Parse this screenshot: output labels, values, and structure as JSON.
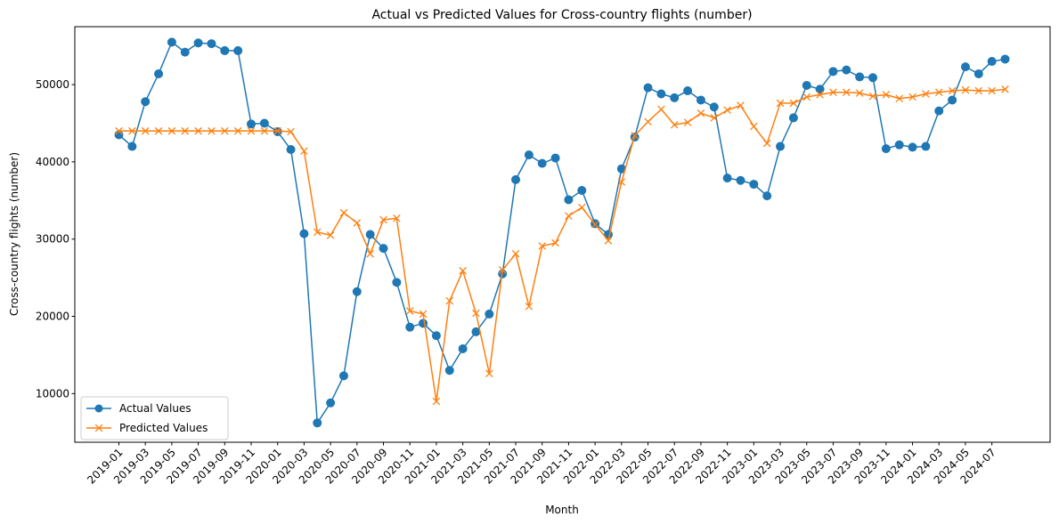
{
  "chart_data": {
    "type": "line",
    "title": "Actual vs Predicted Values for Cross-country flights (number)",
    "xlabel": "Month",
    "ylabel": "Cross-country flights (number)",
    "ylim": [
      3700,
      57500
    ],
    "yticks": [
      10000,
      20000,
      30000,
      40000,
      50000
    ],
    "x": [
      "2019-01",
      "2019-02",
      "2019-03",
      "2019-04",
      "2019-05",
      "2019-06",
      "2019-07",
      "2019-08",
      "2019-09",
      "2019-10",
      "2019-11",
      "2019-12",
      "2020-01",
      "2020-02",
      "2020-03",
      "2020-04",
      "2020-05",
      "2020-06",
      "2020-07",
      "2020-08",
      "2020-09",
      "2020-10",
      "2020-11",
      "2020-12",
      "2021-01",
      "2021-02",
      "2021-03",
      "2021-04",
      "2021-05",
      "2021-06",
      "2021-07",
      "2021-08",
      "2021-09",
      "2021-10",
      "2021-11",
      "2021-12",
      "2022-01",
      "2022-02",
      "2022-03",
      "2022-04",
      "2022-05",
      "2022-06",
      "2022-07",
      "2022-08",
      "2022-09",
      "2022-10",
      "2022-11",
      "2022-12",
      "2023-01",
      "2023-02",
      "2023-03",
      "2023-04",
      "2023-05",
      "2023-06",
      "2023-07",
      "2023-08",
      "2023-09",
      "2023-10",
      "2023-11",
      "2023-12",
      "2024-01",
      "2024-02",
      "2024-03",
      "2024-04",
      "2024-05",
      "2024-06",
      "2024-07",
      "2024-08"
    ],
    "xtick_labels": [
      "2019-01",
      "2019-03",
      "2019-05",
      "2019-07",
      "2019-09",
      "2019-11",
      "2020-01",
      "2020-03",
      "2020-05",
      "2020-07",
      "2020-09",
      "2020-11",
      "2021-01",
      "2021-03",
      "2021-05",
      "2021-07",
      "2021-09",
      "2021-11",
      "2022-01",
      "2022-03",
      "2022-05",
      "2022-07",
      "2022-09",
      "2022-11",
      "2023-01",
      "2023-03",
      "2023-05",
      "2023-07",
      "2023-09",
      "2023-11",
      "2024-01",
      "2024-03",
      "2024-05",
      "2024-07"
    ],
    "series": [
      {
        "name": "Actual Values",
        "color": "#1f77b4",
        "marker": "circle",
        "values": [
          43500,
          42000,
          47800,
          51400,
          55500,
          54200,
          55400,
          55300,
          54400,
          54400,
          44900,
          45000,
          43900,
          41600,
          30700,
          6200,
          8800,
          12300,
          23200,
          30600,
          28800,
          24400,
          18600,
          19100,
          17500,
          13000,
          15800,
          18000,
          20300,
          25500,
          37700,
          40900,
          39800,
          40500,
          35100,
          36300,
          32000,
          30600,
          39100,
          43200,
          49600,
          48800,
          48300,
          49200,
          48000,
          47100,
          37900,
          37600,
          37100,
          35600,
          42000,
          45700,
          49900,
          49400,
          51700,
          51900,
          51000,
          50900,
          41700,
          42200,
          41900,
          42000,
          46600,
          48000,
          52300,
          51400,
          53000,
          53300
        ]
      },
      {
        "name": "Predicted Values",
        "color": "#ff7f0e",
        "marker": "x",
        "values": [
          44000,
          44000,
          44000,
          44000,
          44000,
          44000,
          44000,
          44000,
          44000,
          44000,
          44000,
          44000,
          44000,
          43900,
          41400,
          30900,
          30500,
          33400,
          32100,
          28100,
          32500,
          32700,
          20700,
          20300,
          9000,
          22000,
          25900,
          20400,
          12600,
          26000,
          28100,
          21300,
          29100,
          29500,
          33000,
          34100,
          31900,
          29800,
          37400,
          43400,
          45200,
          46800,
          44800,
          45100,
          46300,
          45700,
          46700,
          47300,
          44600,
          42400,
          47600,
          47600,
          48400,
          48700,
          49000,
          49000,
          48900,
          48500,
          48700,
          48200,
          48400,
          48800,
          49000,
          49200,
          49300,
          49200,
          49200,
          49400
        ]
      }
    ],
    "legend": {
      "position": "lower-left",
      "entries": [
        "Actual Values",
        "Predicted Values"
      ]
    }
  }
}
